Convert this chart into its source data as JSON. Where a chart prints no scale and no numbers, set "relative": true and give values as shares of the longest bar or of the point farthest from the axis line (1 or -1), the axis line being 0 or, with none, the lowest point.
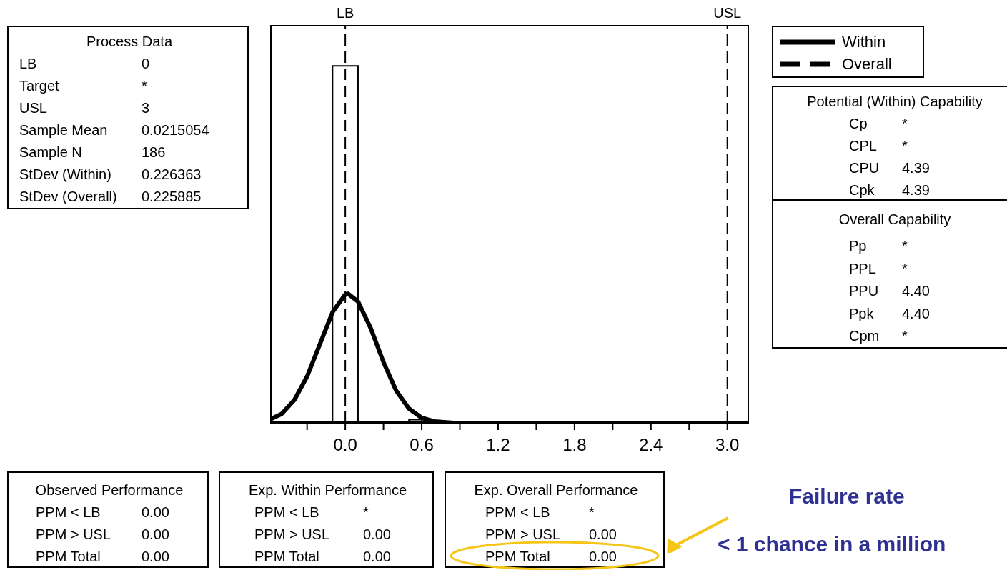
{
  "chart_data": {
    "type": "histogram",
    "relative": true,
    "bins": [
      -0.1,
      0.1,
      0.5,
      0.6
    ],
    "values": [
      1,
      0,
      0.009
    ],
    "color": "#ffffff",
    "series": [
      {
        "name": "Within",
        "type": "line",
        "line_style": "solid",
        "color": "#000000",
        "x": [
          -0.59,
          -0.5,
          -0.4,
          -0.3,
          -0.2,
          -0.1,
          0,
          0.0215,
          0.1,
          0.2,
          0.3,
          0.4,
          0.5,
          0.6,
          0.7,
          0.85,
          null,
          2.93,
          3.13
        ],
        "values": [
          0.01,
          0.025,
          0.064,
          0.13,
          0.22,
          0.31,
          0.36,
          0.362,
          0.34,
          0.265,
          0.17,
          0.09,
          0.04,
          0.014,
          0.004,
          0,
          null,
          0,
          0
        ]
      },
      {
        "name": "Overall",
        "type": "line",
        "line_style": "dashed",
        "color": "#000000"
      }
    ],
    "xlim": [
      -0.59,
      3.17
    ],
    "xticks": [
      {
        "value": -0.3,
        "label": null
      },
      {
        "value": 0,
        "label": "0.0"
      },
      {
        "value": 0.3,
        "label": null
      },
      {
        "value": 0.6,
        "label": "0.6"
      },
      {
        "value": 0.9,
        "label": null
      },
      {
        "value": 1.2,
        "label": "1.2"
      },
      {
        "value": 1.5,
        "label": null
      },
      {
        "value": 1.8,
        "label": "1.8"
      },
      {
        "value": 2.1,
        "label": null
      },
      {
        "value": 2.4,
        "label": "2.4"
      },
      {
        "value": 2.7,
        "label": null
      },
      {
        "value": 3.0,
        "label": "3.0"
      }
    ],
    "ref_lines": [
      {
        "axis": "x",
        "value": 0,
        "label": "LB",
        "line_style": "dashed",
        "color": "#000000"
      },
      {
        "axis": "x",
        "value": 3,
        "label": "USL",
        "line_style": "dashed",
        "color": "#000000"
      }
    ],
    "legend": "top right",
    "annotations": [
      "Process Data",
      "LB",
      "0",
      "Target",
      "*",
      "USL",
      "3",
      "Sample Mean",
      "0.0215054",
      "Sample N",
      "186",
      "StDev (Within)",
      "0.226363",
      "StDev (Overall)",
      "0.225885",
      "Potential (Within) Capability",
      "Cp",
      "*",
      "CPL",
      "*",
      "CPU",
      "4.39",
      "Cpk",
      "4.39",
      "Overall Capability",
      "Pp",
      "*",
      "PPL",
      "*",
      "PPU",
      "4.40",
      "Ppk",
      "4.40",
      "Cpm",
      "*",
      "Observed Performance",
      "PPM < LB",
      "0.00",
      "PPM > USL",
      "0.00",
      "PPM Total",
      "0.00",
      "Exp. Within Performance",
      "PPM < LB",
      "*",
      "PPM > USL",
      "0.00",
      "PPM Total",
      "0.00",
      "Exp. Overall Performance",
      "PPM < LB",
      "*",
      "PPM > USL",
      "0.00",
      "PPM Total",
      "0.00",
      "Failure rate",
      "< 1 chance in a million"
    ]
  }
}
